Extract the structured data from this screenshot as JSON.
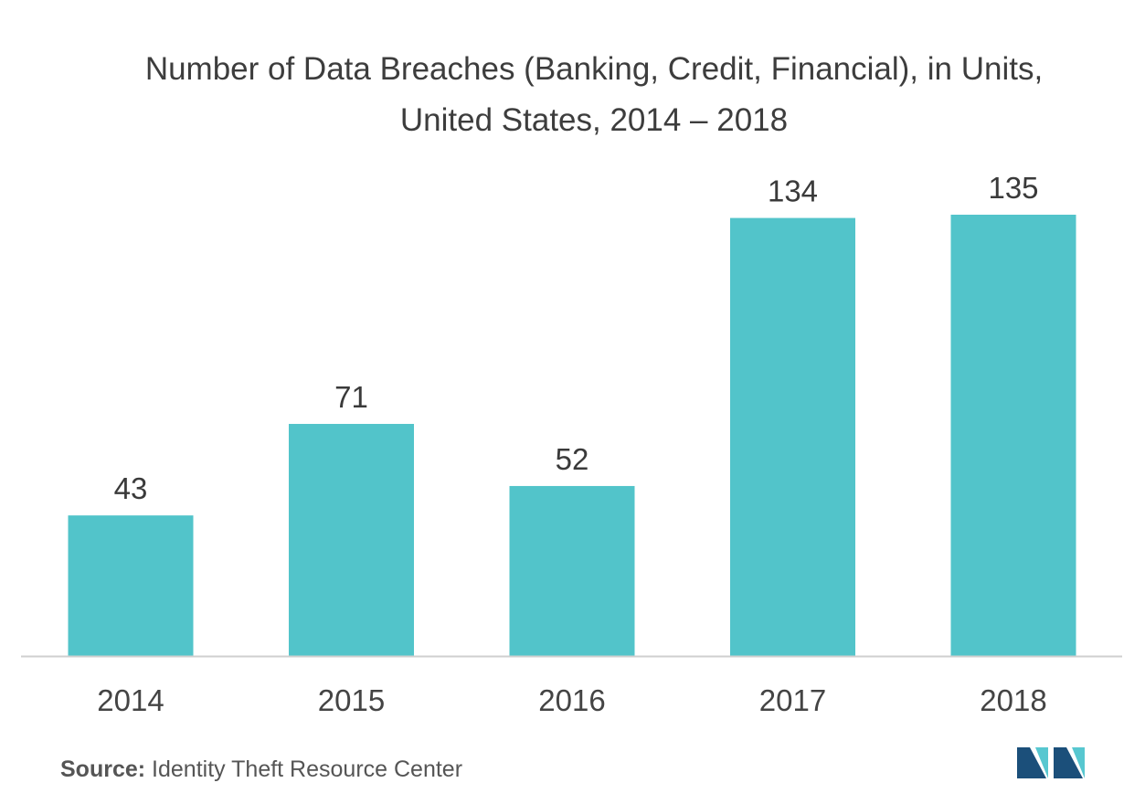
{
  "chart_data": {
    "type": "bar",
    "title": "Number of Data Breaches (Banking, Credit, Financial), in Units, United States, 2014 – 2018",
    "categories": [
      "2014",
      "2015",
      "2016",
      "2017",
      "2018"
    ],
    "values": [
      43,
      71,
      52,
      134,
      135
    ],
    "xlabel": "",
    "ylabel": "",
    "ylim": [
      0,
      135
    ],
    "grid": false,
    "legend": "none",
    "bar_color": "#52c4ca"
  },
  "source": {
    "label": "Source:",
    "text": "Identity Theft Resource Center"
  },
  "colors": {
    "bar": "#52c4ca",
    "axis": "#cfcfcf",
    "logo_dark": "#1b4f7a",
    "logo_light": "#57c7d0"
  }
}
